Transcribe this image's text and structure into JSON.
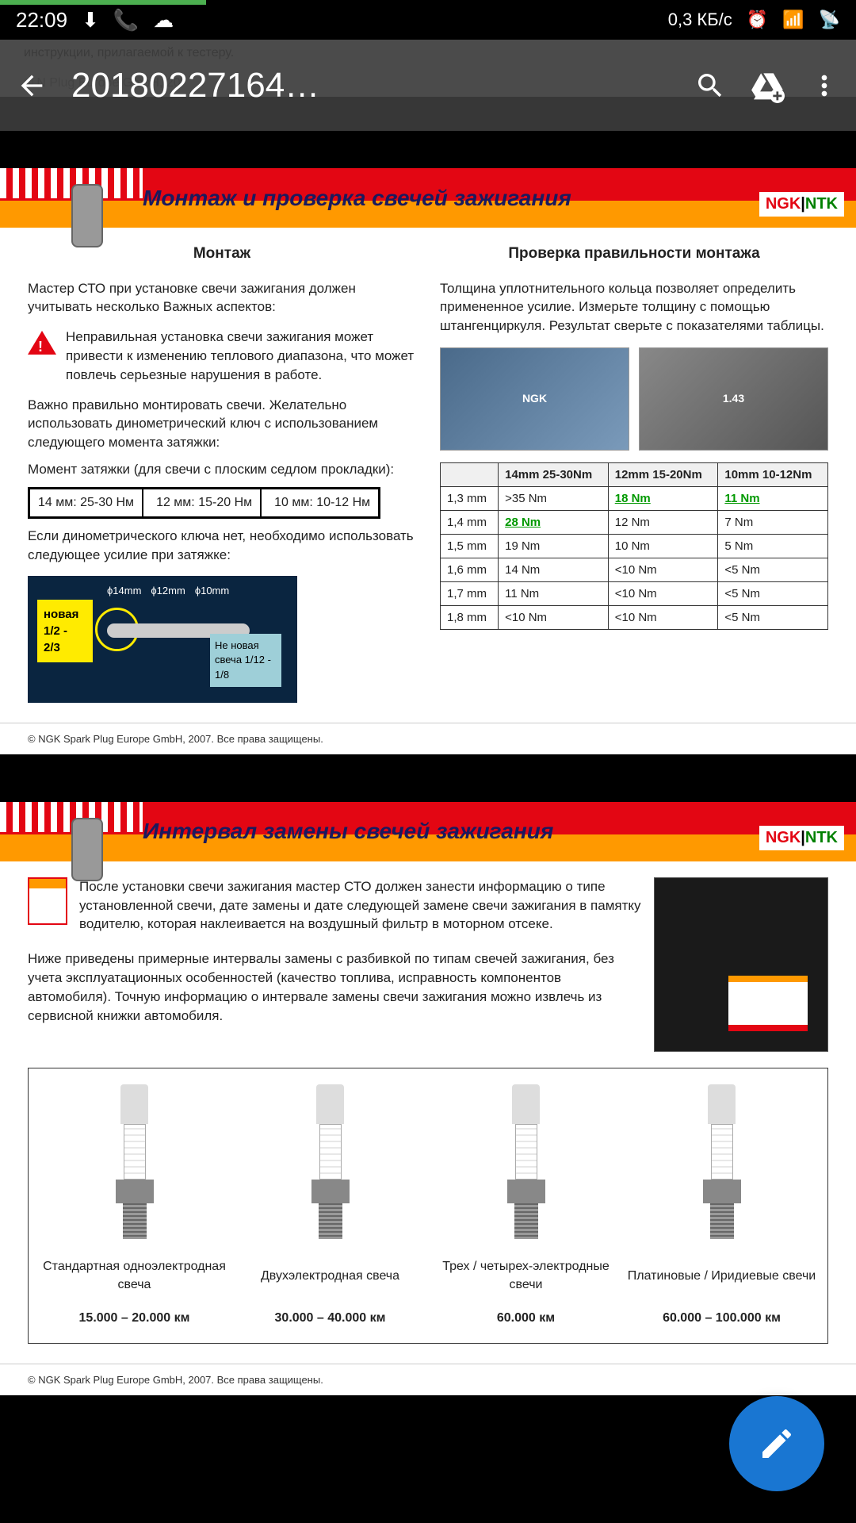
{
  "status": {
    "time": "22:09",
    "net": "0,3 КБ/с"
  },
  "app": {
    "title": "20180227164…"
  },
  "strip": {
    "text": "инструкции, прилагаемой к тестеру.",
    "copy": "© N         Plug Europe GmbH, 20"
  },
  "page1": {
    "title": "Монтаж и проверка свечей зажигания",
    "leftH": "Монтаж",
    "rightH": "Проверка правильности монтажа",
    "intro": "Мастер СТО при установке свечи зажигания должен учитывать несколько Важных аспектов:",
    "warn": "Неправильная установка свечи зажигания может привести к изменению теплового диапазона, что может повлечь серьезные нарушения в работе.",
    "p2": "Важно правильно монтировать свечи. Желательно использовать динометрический ключ с использованием следующего момента затяжки:",
    "p3": "Момент затяжки (для свечи с плоским седлом прокладки):",
    "torque": [
      "14 мм: 25-30 Нм",
      "12 мм: 15-20 Нм",
      "10 мм: 10-12 Нм"
    ],
    "p4": "Если динометрического  ключа нет, необходимо использовать следующее усилие при затяжке:",
    "wrench": {
      "new": "новая 1/2 - 2/3",
      "labels": [
        "ϕ14mm",
        "ϕ12mm",
        "ϕ10mm"
      ],
      "old": "Не новая свеча 1/12 - 1/8"
    },
    "rightP": "Толщина уплотнительного кольца позволяет определить примененное усилие. Измерьте толщину с помощью штангенциркуля. Результат сверьте с показателями таблицы.",
    "photoL": "NGK",
    "table": {
      "head": [
        "",
        "14mm 25-30Nm",
        "12mm 15-20Nm",
        "10mm 10-12Nm"
      ],
      "rows": [
        [
          "1,3 mm",
          ">35 Nm",
          {
            "v": "18 Nm",
            "g": true
          },
          {
            "v": "11 Nm",
            "g": true
          }
        ],
        [
          "1,4 mm",
          {
            "v": "28 Nm",
            "g": true
          },
          "12 Nm",
          "7 Nm"
        ],
        [
          "1,5 mm",
          "19 Nm",
          "10 Nm",
          "5 Nm"
        ],
        [
          "1,6 mm",
          "14 Nm",
          "<10 Nm",
          "<5 Nm"
        ],
        [
          "1,7 mm",
          "11 Nm",
          "<10 Nm",
          "<5 Nm"
        ],
        [
          "1,8 mm",
          "<10 Nm",
          "<10 Nm",
          "<5 Nm"
        ]
      ]
    },
    "copy": "© NGK Spark Plug Europe GmbH, 2007. Все права защищены."
  },
  "page2": {
    "title": "Интервал замены свечей зажигания",
    "p1": "После установки свечи зажигания мастер СТО должен занести информацию о типе установленной свечи, дате замены и дате следующей замене свечи зажигания в памятку водителю, которая наклеивается на воздушный фильтр в моторном отсеке.",
    "p2": "Ниже приведены примерные интервалы замены с разбивкой по типам свечей зажигания, без учета эксплуатационных особенностей (качество топлива, исправность компонентов автомобиля). Точную информацию о интервале замены свечи зажигания можно извлечь из сервисной книжки автомобиля.",
    "plugs": [
      {
        "name": "Стандартная одноэлектродная свеча",
        "km": "15.000 – 20.000 км"
      },
      {
        "name": "Двухэлектродная свеча",
        "km": "30.000 – 40.000 км"
      },
      {
        "name": "Трех / четырех-электродные свечи",
        "km": "60.000 км"
      },
      {
        "name": "Платиновые / Иридиевые свечи",
        "km": "60.000 – 100.000 км"
      }
    ],
    "copy": "© NGK Spark Plug Europe GmbH, 2007. Все права защищены."
  },
  "brand": {
    "ngk": "NGK",
    "sep": "|",
    "ntk": "NTK"
  }
}
